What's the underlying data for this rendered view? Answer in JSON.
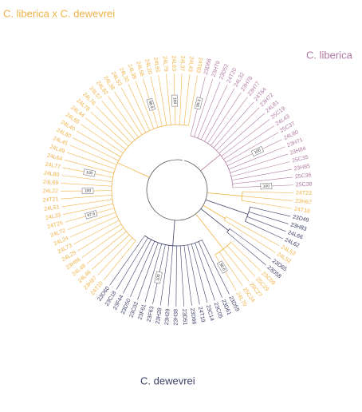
{
  "clades": [
    {
      "name": "C. liberica x C. dewevrei",
      "color": "#f0b245"
    },
    {
      "name": "C. liberica",
      "color": "#b07aa3"
    },
    {
      "name": "C. dewevrei",
      "color": "#3e4068"
    }
  ],
  "leaves": [
    {
      "label": "23D66",
      "clade": 1,
      "support": "99.3"
    },
    {
      "label": "23H79",
      "clade": 1
    },
    {
      "label": "23D52",
      "clade": 1
    },
    {
      "label": "24T20",
      "clade": 1
    },
    {
      "label": "24L32",
      "clade": 1
    },
    {
      "label": "23H78",
      "clade": 1
    },
    {
      "label": "23H77",
      "clade": 1
    },
    {
      "label": "24T64",
      "clade": 1
    },
    {
      "label": "23H72",
      "clade": 1
    },
    {
      "label": "24L81",
      "clade": 1
    },
    {
      "label": "25C19",
      "clade": 1
    },
    {
      "label": "24L43",
      "clade": 1
    },
    {
      "label": "25C37",
      "clade": 1
    },
    {
      "label": "24L80",
      "clade": 1,
      "support": "100"
    },
    {
      "label": "23H71",
      "clade": 1
    },
    {
      "label": "23H84",
      "clade": 1
    },
    {
      "label": "25C35",
      "clade": 1
    },
    {
      "label": "23H85",
      "clade": 1
    },
    {
      "label": "25C36",
      "clade": 1
    },
    {
      "label": "25C38",
      "clade": 1,
      "support": "100"
    },
    {
      "label": "24T23",
      "clade": 0
    },
    {
      "label": "23H67",
      "clade": 0
    },
    {
      "label": "24T18",
      "clade": 0
    },
    {
      "label": "23D49",
      "clade": 2
    },
    {
      "label": "23H83",
      "clade": 2
    },
    {
      "label": "24L66",
      "clade": 2
    },
    {
      "label": "24L62",
      "clade": 2
    },
    {
      "label": "24L53",
      "clade": 0
    },
    {
      "label": "24L52",
      "clade": 0
    },
    {
      "label": "23D65",
      "clade": 2
    },
    {
      "label": "23D58",
      "clade": 2
    },
    {
      "label": "23C09",
      "clade": 0
    },
    {
      "label": "25C29",
      "clade": 0
    },
    {
      "label": "25C27",
      "clade": 0
    },
    {
      "label": "25C24",
      "clade": 0
    },
    {
      "label": "24L70",
      "clade": 0,
      "support": "96.6"
    },
    {
      "label": "23D59",
      "clade": 2
    },
    {
      "label": "23D61",
      "clade": 2
    },
    {
      "label": "23C05",
      "clade": 2
    },
    {
      "label": "23C14",
      "clade": 2
    },
    {
      "label": "24T19",
      "clade": 2
    },
    {
      "label": "23D66",
      "clade": 2
    },
    {
      "label": "23D51",
      "clade": 2
    },
    {
      "label": "23H38",
      "clade": 2
    },
    {
      "label": "23H29",
      "clade": 2
    },
    {
      "label": "23H28",
      "clade": 2
    },
    {
      "label": "23F63",
      "clade": 2,
      "support": "100"
    },
    {
      "label": "23F61",
      "clade": 2
    },
    {
      "label": "23C02",
      "clade": 2
    },
    {
      "label": "23D50",
      "clade": 2
    },
    {
      "label": "23F44",
      "clade": 2
    },
    {
      "label": "23C18",
      "clade": 2
    },
    {
      "label": "23D60",
      "clade": 2
    },
    {
      "label": "24T10",
      "clade": 0
    },
    {
      "label": "23H87",
      "clade": 0
    },
    {
      "label": "24L46",
      "clade": 0
    },
    {
      "label": "24L48",
      "clade": 0
    },
    {
      "label": "23H86",
      "clade": 0
    },
    {
      "label": "24L29",
      "clade": 0
    },
    {
      "label": "24L73",
      "clade": 0
    },
    {
      "label": "24L24",
      "clade": 0
    },
    {
      "label": "24L72",
      "clade": 0
    },
    {
      "label": "24T25",
      "clade": 0,
      "support": "97.6"
    },
    {
      "label": "24L33",
      "clade": 0
    },
    {
      "label": "24L51",
      "clade": 0
    },
    {
      "label": "24T21",
      "clade": 0
    },
    {
      "label": "24L22",
      "clade": 0,
      "support": "100"
    },
    {
      "label": "24L69",
      "clade": 0
    },
    {
      "label": "24L80",
      "clade": 0
    },
    {
      "label": "24L77",
      "clade": 0,
      "support": "100"
    },
    {
      "label": "24L64",
      "clade": 0
    },
    {
      "label": "24L49",
      "clade": 0
    },
    {
      "label": "24L45",
      "clade": 0
    },
    {
      "label": "24L60",
      "clade": 0
    },
    {
      "label": "24L40",
      "clade": 0
    },
    {
      "label": "24L65",
      "clade": 0
    },
    {
      "label": "24L44",
      "clade": 0
    },
    {
      "label": "24L78",
      "clade": 0
    },
    {
      "label": "24L76",
      "clade": 0
    },
    {
      "label": "24L57",
      "clade": 0
    },
    {
      "label": "24L82",
      "clade": 0
    },
    {
      "label": "24L38",
      "clade": 0
    },
    {
      "label": "24L53",
      "clade": 0
    },
    {
      "label": "24L30",
      "clade": 0
    },
    {
      "label": "24L39",
      "clade": 0
    },
    {
      "label": "24L56",
      "clade": 0,
      "support": "98.9"
    },
    {
      "label": "24L20",
      "clade": 0
    },
    {
      "label": "24L91",
      "clade": 0
    },
    {
      "label": "24L79",
      "clade": 0
    },
    {
      "label": "24L63",
      "clade": 0,
      "support": "100"
    },
    {
      "label": "24L37",
      "clade": 0
    },
    {
      "label": "24L43",
      "clade": 0
    },
    {
      "label": "24T83",
      "clade": 0
    }
  ]
}
